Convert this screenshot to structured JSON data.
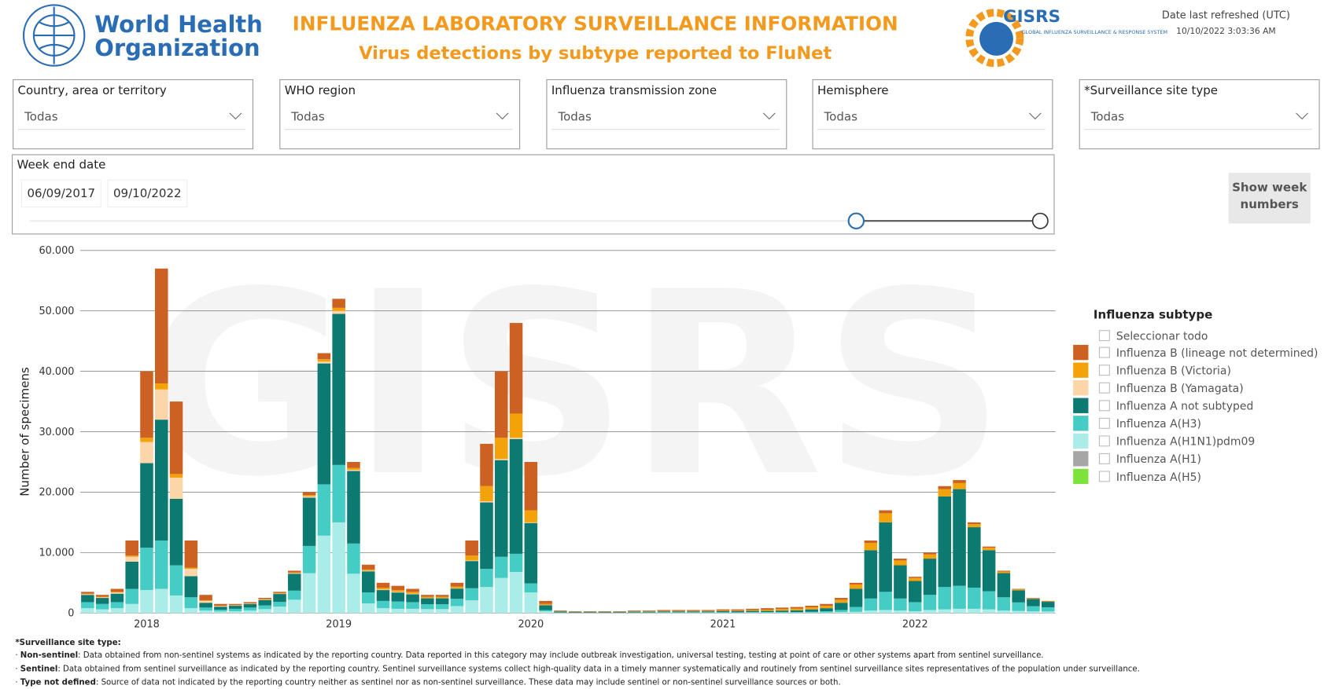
{
  "header": {
    "org_line1": "World Health",
    "org_line2": "Organization",
    "title": "INFLUENZA LABORATORY SURVEILLANCE INFORMATION",
    "subtitle": "Virus detections by subtype reported to FluNet",
    "gisrs_name": "GISRS",
    "gisrs_tagline": "GLOBAL INFLUENZA SURVEILLANCE & RESPONSE SYSTEM",
    "refreshed_label": "Date last refreshed (UTC)",
    "refreshed_value": "10/10/2022 3:03:36 AM"
  },
  "filters": [
    {
      "label": "Country, area or territory",
      "value": "Todas"
    },
    {
      "label": "WHO region",
      "value": "Todas"
    },
    {
      "label": "Influenza transmission zone",
      "value": "Todas"
    },
    {
      "label": "Hemisphere",
      "value": "Todas"
    },
    {
      "label": "*Surveillance site type",
      "value": "Todas"
    }
  ],
  "week_filter": {
    "label": "Week end date",
    "start": "06/09/2017",
    "end": "09/10/2022"
  },
  "week_button": "Show week numbers",
  "chart_data": {
    "type": "stacked_bar",
    "watermark": "GISRS",
    "y_label": "Number of specimens",
    "legend_title": "Influenza subtype",
    "legend_select_all": "Seleccionar todo",
    "legend_position": "right",
    "grid": true,
    "ylim": [
      0,
      60000
    ],
    "yticks": [
      0,
      {
        "value": 10000,
        "label": "10.000"
      },
      {
        "value": 20000,
        "label": "20.000"
      },
      {
        "value": 30000,
        "label": "30.000"
      },
      {
        "value": 40000,
        "label": "40.000"
      },
      {
        "value": 50000,
        "label": "50.000"
      },
      {
        "value": 60000,
        "label": "60.000"
      }
    ],
    "categories": [
      null,
      null,
      null,
      null,
      "2018",
      null,
      null,
      null,
      null,
      null,
      null,
      null,
      null,
      null,
      null,
      null,
      null,
      "2019",
      null,
      null,
      null,
      null,
      null,
      null,
      null,
      null,
      null,
      null,
      null,
      null,
      "2020",
      null,
      null,
      null,
      null,
      null,
      null,
      null,
      null,
      null,
      null,
      null,
      null,
      "2021",
      null,
      null,
      null,
      null,
      null,
      null,
      null,
      null,
      null,
      null,
      null,
      null,
      "2022",
      null,
      null,
      null,
      null,
      null,
      null,
      null,
      null,
      null
    ],
    "series": [
      {
        "name": "Influenza B (lineage not determined)",
        "color": "#cc6122",
        "values": [
          300,
          300,
          500,
          2500,
          11000,
          19000,
          12000,
          4500,
          900,
          300,
          200,
          200,
          200,
          200,
          300,
          500,
          1000,
          1500,
          1000,
          800,
          800,
          700,
          500,
          300,
          300,
          600,
          2500,
          7000,
          11000,
          15000,
          8000,
          500,
          100,
          80,
          80,
          80,
          80,
          120,
          120,
          150,
          150,
          150,
          150,
          200,
          200,
          200,
          250,
          250,
          250,
          250,
          300,
          300,
          300,
          400,
          500,
          300,
          200,
          300,
          500,
          500,
          300,
          200,
          150,
          100,
          80,
          70
        ]
      },
      {
        "name": "Influenza B (Victoria)",
        "color": "#f4a20a",
        "values": [
          100,
          100,
          100,
          200,
          700,
          1000,
          600,
          200,
          100,
          50,
          50,
          50,
          100,
          100,
          100,
          200,
          400,
          500,
          300,
          200,
          300,
          300,
          300,
          200,
          200,
          300,
          800,
          2500,
          3500,
          4000,
          2000,
          200,
          50,
          40,
          40,
          40,
          40,
          60,
          60,
          80,
          80,
          80,
          80,
          100,
          100,
          150,
          200,
          250,
          300,
          350,
          400,
          500,
          700,
          1200,
          1500,
          800,
          500,
          700,
          1200,
          1000,
          500,
          400,
          250,
          150,
          100,
          80
        ]
      },
      {
        "name": "Influenza B (Yamagata)",
        "color": "#fcd5a8",
        "values": [
          100,
          100,
          200,
          800,
          3500,
          5000,
          3500,
          1200,
          300,
          100,
          50,
          50,
          50,
          50,
          100,
          200,
          300,
          500,
          200,
          100,
          100,
          100,
          100,
          50,
          50,
          50,
          100,
          200,
          200,
          200,
          100,
          20,
          0,
          0,
          0,
          0,
          0,
          0,
          0,
          0,
          0,
          0,
          0,
          0,
          0,
          0,
          0,
          0,
          0,
          0,
          0,
          0,
          0,
          0,
          0,
          0,
          0,
          0,
          0,
          0,
          0,
          0,
          0,
          0,
          0,
          0
        ]
      },
      {
        "name": "Influenza A not subtyped",
        "color": "#0d7a72",
        "values": [
          1200,
          1000,
          1400,
          4500,
          14000,
          20000,
          11000,
          3500,
          800,
          500,
          500,
          600,
          900,
          1300,
          2800,
          8000,
          20000,
          25000,
          12000,
          3500,
          1800,
          1500,
          1300,
          1000,
          1000,
          1700,
          4500,
          11000,
          16000,
          19000,
          10000,
          800,
          150,
          100,
          100,
          100,
          100,
          120,
          120,
          150,
          150,
          150,
          150,
          180,
          180,
          200,
          200,
          250,
          300,
          400,
          500,
          1200,
          3000,
          8000,
          11500,
          5500,
          3500,
          6000,
          15000,
          16000,
          10000,
          6800,
          4000,
          2000,
          1200,
          900
        ]
      },
      {
        "name": "Influenza A(H3)",
        "color": "#45cdc5",
        "values": [
          1000,
          900,
          1000,
          2500,
          7000,
          8000,
          5000,
          1800,
          500,
          300,
          400,
          500,
          600,
          800,
          1500,
          4500,
          8500,
          9500,
          5000,
          1800,
          1200,
          1200,
          1100,
          800,
          800,
          1200,
          2000,
          3000,
          3500,
          3000,
          1500,
          200,
          50,
          40,
          40,
          40,
          40,
          50,
          50,
          60,
          60,
          60,
          60,
          60,
          60,
          80,
          80,
          80,
          80,
          120,
          200,
          350,
          800,
          2000,
          3000,
          2000,
          1500,
          2500,
          3700,
          3800,
          3500,
          3000,
          2200,
          1400,
          850,
          700
        ]
      },
      {
        "name": "Influenza A(H1N1)pdm09",
        "color": "#aaece8",
        "values": [
          800,
          600,
          800,
          1500,
          3800,
          4000,
          2900,
          800,
          400,
          250,
          300,
          400,
          650,
          1050,
          2200,
          6600,
          12800,
          15000,
          6500,
          1600,
          800,
          700,
          700,
          650,
          650,
          1150,
          2100,
          4300,
          5800,
          6800,
          3400,
          280,
          50,
          40,
          40,
          40,
          40,
          50,
          50,
          60,
          60,
          60,
          60,
          60,
          60,
          70,
          70,
          70,
          70,
          80,
          100,
          150,
          200,
          400,
          500,
          400,
          300,
          500,
          600,
          700,
          700,
          600,
          400,
          350,
          270,
          250
        ]
      },
      {
        "name": "Influenza A(H1)",
        "color": "#a6a6a6",
        "values": [
          0,
          0,
          0,
          0,
          0,
          0,
          0,
          0,
          0,
          0,
          0,
          0,
          0,
          0,
          0,
          0,
          0,
          0,
          0,
          0,
          0,
          0,
          0,
          0,
          0,
          0,
          0,
          0,
          0,
          0,
          0,
          0,
          0,
          0,
          0,
          0,
          0,
          0,
          0,
          0,
          0,
          0,
          0,
          0,
          0,
          0,
          0,
          0,
          0,
          0,
          0,
          0,
          0,
          0,
          0,
          0,
          0,
          0,
          0,
          0,
          0,
          0,
          0,
          0,
          0,
          0
        ]
      },
      {
        "name": "Influenza A(H5)",
        "color": "#7de33b",
        "values": [
          0,
          0,
          0,
          0,
          0,
          0,
          0,
          0,
          0,
          0,
          0,
          0,
          0,
          0,
          0,
          0,
          0,
          0,
          0,
          0,
          0,
          0,
          0,
          0,
          0,
          0,
          0,
          0,
          0,
          0,
          0,
          0,
          0,
          0,
          0,
          0,
          0,
          0,
          0,
          0,
          0,
          0,
          0,
          0,
          0,
          0,
          0,
          0,
          0,
          0,
          0,
          0,
          0,
          0,
          0,
          0,
          0,
          0,
          0,
          0,
          0,
          0,
          0,
          0,
          0,
          0
        ]
      }
    ]
  },
  "footnote": {
    "title": "*Surveillance site type:",
    "items": [
      {
        "term": "Non-sentinel",
        "text": ": Data obtained from non-sentinel systems as indicated by the reporting country. Data reported in this category may include outbreak investigation, universal testing, testing at point of care or other systems apart from sentinel surveillance."
      },
      {
        "term": "Sentinel",
        "text": ": Data obtained from sentinel surveillance as indicated by the reporting country. Sentinel surveillance systems collect high-quality data in a timely manner systematically and routinely from sentinel surveillance sites representatives of the population under surveillance."
      },
      {
        "term": "Type not defined",
        "text": ": Source of data not indicated by the reporting country neither as sentinel nor as non-sentinel surveillance. These data may include sentinel or non-sentinel surveillance sources or both."
      }
    ]
  }
}
